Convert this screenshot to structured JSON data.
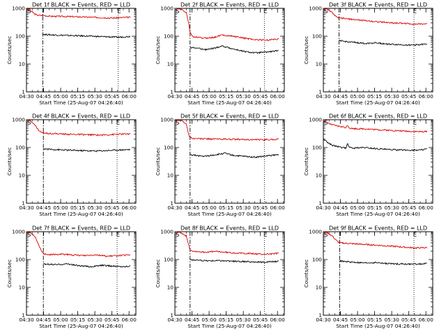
{
  "figure": {
    "ylabel": "Counts/sec",
    "xlabel": "Start Time (25-Aug-07 04:26:40)"
  },
  "colors": {
    "events": "#000000",
    "lld": "#dd0000"
  },
  "chart_data": [
    {
      "type": "line",
      "title": "Det 1f BLACK = Events, RED = LLD",
      "x_ticks": [
        "04:30",
        "04:45",
        "05:00",
        "05:15",
        "05:30",
        "05:45",
        "06:00"
      ],
      "y_ticks": [
        "1",
        "10",
        "100",
        "1000"
      ],
      "ylim": [
        1,
        1000
      ],
      "y_scale": "log",
      "xlim_min": [
        4,
        100
      ],
      "markers": {
        "S": 4,
        "E": 85.5
      },
      "vlines": [
        {
          "t": 18.3,
          "style": "dashdot"
        },
        {
          "t": 84.5,
          "style": "dotted"
        }
      ],
      "series": [
        {
          "role": "lld",
          "x": [
            4,
            8,
            12,
            14,
            18,
            25,
            40,
            60,
            80,
            95
          ],
          "y": [
            1000,
            800,
            600,
            560,
            560,
            520,
            510,
            480,
            450,
            480
          ]
        },
        {
          "role": "events",
          "x": [
            18.4,
            20,
            30,
            45,
            60,
            75,
            85,
            95
          ],
          "y": [
            120,
            115,
            110,
            105,
            100,
            95,
            92,
            98
          ]
        }
      ]
    },
    {
      "type": "line",
      "title": "Det 2f BLACK = Events, RED = LLD",
      "x_ticks": [
        "04:30",
        "04:45",
        "05:00",
        "05:15",
        "05:30",
        "05:45",
        "06:00"
      ],
      "y_ticks": [
        "1",
        "10",
        "100",
        "1000"
      ],
      "ylim": [
        1,
        1000
      ],
      "y_scale": "log",
      "xlim_min": [
        4,
        100
      ],
      "markers": {
        "S": 4,
        "E": 83.5
      },
      "vlines": [
        {
          "t": 17.3,
          "style": "dashdot"
        },
        {
          "t": 82.5,
          "style": "dotted"
        }
      ],
      "series": [
        {
          "role": "lld",
          "x": [
            4,
            10,
            14,
            16,
            17.4,
            20,
            30,
            38,
            45,
            55,
            65,
            75,
            85,
            95
          ],
          "y": [
            1000,
            900,
            700,
            300,
            130,
            95,
            85,
            90,
            110,
            100,
            85,
            75,
            72,
            80
          ]
        },
        {
          "role": "events",
          "x": [
            17.4,
            22,
            32,
            40,
            45,
            55,
            65,
            75,
            85,
            95
          ],
          "y": [
            40,
            38,
            33,
            38,
            45,
            35,
            28,
            25,
            27,
            30
          ]
        }
      ]
    },
    {
      "type": "line",
      "title": "Det 3f BLACK = Events, RED = LLD",
      "x_ticks": [
        "04:30",
        "04:45",
        "05:00",
        "05:15",
        "05:30",
        "05:45",
        "06:00"
      ],
      "y_ticks": [
        "1",
        "10",
        "100",
        "1000"
      ],
      "ylim": [
        1,
        1000
      ],
      "y_scale": "log",
      "xlim_min": [
        4,
        100
      ],
      "markers": {
        "S": 4,
        "E": 84.5
      },
      "vlines": [
        {
          "t": 17.8,
          "style": "dashdot"
        },
        {
          "t": 83.5,
          "style": "dotted"
        }
      ],
      "series": [
        {
          "role": "lld",
          "x": [
            4,
            8,
            12,
            15,
            18,
            25,
            35,
            45,
            55,
            65,
            75,
            85,
            95
          ],
          "y": [
            1000,
            900,
            700,
            500,
            450,
            420,
            380,
            350,
            320,
            300,
            290,
            270,
            280
          ]
        },
        {
          "role": "events",
          "x": [
            17.9,
            22,
            30,
            40,
            50,
            60,
            70,
            80,
            90,
            95
          ],
          "y": [
            70,
            65,
            60,
            55,
            58,
            52,
            50,
            48,
            50,
            52
          ]
        }
      ]
    },
    {
      "type": "line",
      "title": "Det 4f BLACK = Events, RED = LLD",
      "x_ticks": [
        "04:30",
        "04:45",
        "05:00",
        "05:15",
        "05:30",
        "05:45",
        "06:00"
      ],
      "y_ticks": [
        "1",
        "10",
        "100",
        "1000"
      ],
      "ylim": [
        1,
        1000
      ],
      "y_scale": "log",
      "xlim_min": [
        4,
        100
      ],
      "markers": {
        "S": 4,
        "E": 84.5
      },
      "vlines": [
        {
          "t": 18.8,
          "style": "dashdot"
        },
        {
          "t": 83.5,
          "style": "dotted"
        }
      ],
      "series": [
        {
          "role": "lld",
          "x": [
            4,
            8,
            12,
            15,
            18,
            25,
            40,
            55,
            70,
            85,
            95
          ],
          "y": [
            1000,
            900,
            600,
            400,
            340,
            320,
            300,
            290,
            280,
            300,
            310
          ]
        },
        {
          "role": "events",
          "x": [
            18.9,
            22,
            35,
            50,
            65,
            80,
            95
          ],
          "y": [
            90,
            88,
            82,
            78,
            75,
            80,
            85
          ]
        }
      ]
    },
    {
      "type": "line",
      "title": "Det 5f BLACK = Events, RED = LLD",
      "x_ticks": [
        "04:30",
        "04:45",
        "05:00",
        "05:15",
        "05:30",
        "05:45",
        "06:00"
      ],
      "y_ticks": [
        "1",
        "10",
        "100",
        "1000"
      ],
      "ylim": [
        1,
        1000
      ],
      "y_scale": "log",
      "xlim_min": [
        4,
        100
      ],
      "markers": {
        "S": 4,
        "E": 83.5
      },
      "vlines": [
        {
          "t": 17.3,
          "style": "dashdot"
        },
        {
          "t": 82.5,
          "style": "dotted"
        }
      ],
      "series": [
        {
          "role": "lld",
          "x": [
            4,
            10,
            14,
            16,
            17.4,
            20,
            30,
            45,
            60,
            75,
            90,
            95
          ],
          "y": [
            1000,
            900,
            700,
            300,
            230,
            210,
            205,
            200,
            195,
            190,
            195,
            200
          ]
        },
        {
          "role": "events",
          "x": [
            17.4,
            22,
            30,
            40,
            48,
            55,
            65,
            75,
            85,
            95
          ],
          "y": [
            55,
            52,
            48,
            55,
            62,
            52,
            48,
            45,
            50,
            55
          ]
        }
      ]
    },
    {
      "type": "line",
      "title": "Det 6f BLACK = Events, RED = LLD",
      "x_ticks": [
        "04:30",
        "04:45",
        "05:00",
        "05:15",
        "05:30",
        "05:45",
        "06:00"
      ],
      "y_ticks": [
        "1",
        "10",
        "100",
        "1000"
      ],
      "ylim": [
        1,
        1000
      ],
      "y_scale": "log",
      "xlim_min": [
        4,
        100
      ],
      "markers": {
        "S": 4,
        "E": 84.5
      },
      "vlines": [
        {
          "t": 83.5,
          "style": "dotted"
        }
      ],
      "series": [
        {
          "role": "lld",
          "x": [
            4,
            8,
            12,
            16,
            20,
            24,
            25,
            27,
            30,
            40,
            50,
            60,
            70,
            80,
            90,
            95
          ],
          "y": [
            900,
            750,
            650,
            600,
            560,
            520,
            650,
            500,
            480,
            470,
            440,
            420,
            400,
            380,
            370,
            380
          ]
        },
        {
          "role": "events",
          "x": [
            4,
            8,
            12,
            16,
            20,
            24,
            25,
            27,
            30,
            40,
            50,
            60,
            70,
            80,
            90,
            95
          ],
          "y": [
            200,
            150,
            120,
            110,
            100,
            95,
            140,
            100,
            95,
            100,
            92,
            85,
            82,
            80,
            82,
            90
          ]
        }
      ]
    },
    {
      "type": "line",
      "title": "Det 7f BLACK = Events, RED = LLD",
      "x_ticks": [
        "04:30",
        "04:45",
        "05:00",
        "05:15",
        "05:30",
        "05:45",
        "06:00"
      ],
      "y_ticks": [
        "1",
        "10",
        "100",
        "1000"
      ],
      "ylim": [
        1,
        1000
      ],
      "y_scale": "log",
      "xlim_min": [
        4,
        100
      ],
      "markers": {
        "S": 4,
        "E": 84.5
      },
      "vlines": [
        {
          "t": 18.8,
          "style": "dashdot"
        },
        {
          "t": 83.5,
          "style": "dotted"
        }
      ],
      "series": [
        {
          "role": "lld",
          "x": [
            4,
            8,
            12,
            15,
            18,
            20,
            25,
            35,
            45,
            55,
            65,
            75,
            85,
            95
          ],
          "y": [
            1000,
            900,
            600,
            300,
            180,
            160,
            150,
            155,
            145,
            140,
            150,
            130,
            140,
            145
          ]
        },
        {
          "role": "events",
          "x": [
            18.9,
            22,
            30,
            40,
            50,
            60,
            70,
            80,
            90,
            95
          ],
          "y": [
            70,
            68,
            65,
            70,
            60,
            55,
            62,
            58,
            55,
            60
          ]
        }
      ]
    },
    {
      "type": "line",
      "title": "Det 8f BLACK = Events, RED = LLD",
      "x_ticks": [
        "04:30",
        "04:45",
        "05:00",
        "05:15",
        "05:30",
        "05:45",
        "06:00"
      ],
      "y_ticks": [
        "1",
        "10",
        "100",
        "1000"
      ],
      "ylim": [
        1,
        1000
      ],
      "y_scale": "log",
      "xlim_min": [
        4,
        100
      ],
      "markers": {
        "S": 4,
        "E": 83.5
      },
      "vlines": [
        {
          "t": 17.3,
          "style": "dashdot"
        },
        {
          "t": 82.5,
          "style": "dotted"
        }
      ],
      "series": [
        {
          "role": "lld",
          "x": [
            4,
            10,
            14,
            16,
            17.4,
            20,
            30,
            40,
            50,
            60,
            70,
            80,
            90,
            95
          ],
          "y": [
            1000,
            900,
            700,
            350,
            220,
            200,
            185,
            195,
            180,
            170,
            165,
            155,
            160,
            170
          ]
        },
        {
          "role": "events",
          "x": [
            17.4,
            22,
            32,
            42,
            52,
            62,
            72,
            82,
            92,
            95
          ],
          "y": [
            100,
            95,
            90,
            92,
            88,
            85,
            82,
            80,
            85,
            90
          ]
        }
      ]
    },
    {
      "type": "line",
      "title": "Det 9f BLACK = Events, RED = LLD",
      "x_ticks": [
        "04:30",
        "04:45",
        "05:00",
        "05:15",
        "05:30",
        "05:45",
        "06:00"
      ],
      "y_ticks": [
        "1",
        "10",
        "100",
        "1000"
      ],
      "ylim": [
        1,
        1000
      ],
      "y_scale": "log",
      "xlim_min": [
        4,
        100
      ],
      "markers": {
        "S": 4,
        "E": 84.5
      },
      "vlines": [
        {
          "t": 18.3,
          "style": "dashdot"
        },
        {
          "t": 83.5,
          "style": "dotted"
        }
      ],
      "series": [
        {
          "role": "lld",
          "x": [
            4,
            8,
            12,
            15,
            18,
            25,
            35,
            45,
            55,
            65,
            75,
            85,
            95
          ],
          "y": [
            1000,
            900,
            700,
            500,
            400,
            380,
            360,
            340,
            320,
            300,
            280,
            260,
            270
          ]
        },
        {
          "role": "events",
          "x": [
            18.4,
            22,
            30,
            40,
            50,
            60,
            70,
            80,
            90,
            95
          ],
          "y": [
            90,
            85,
            80,
            75,
            78,
            72,
            70,
            68,
            70,
            72
          ]
        }
      ]
    }
  ]
}
